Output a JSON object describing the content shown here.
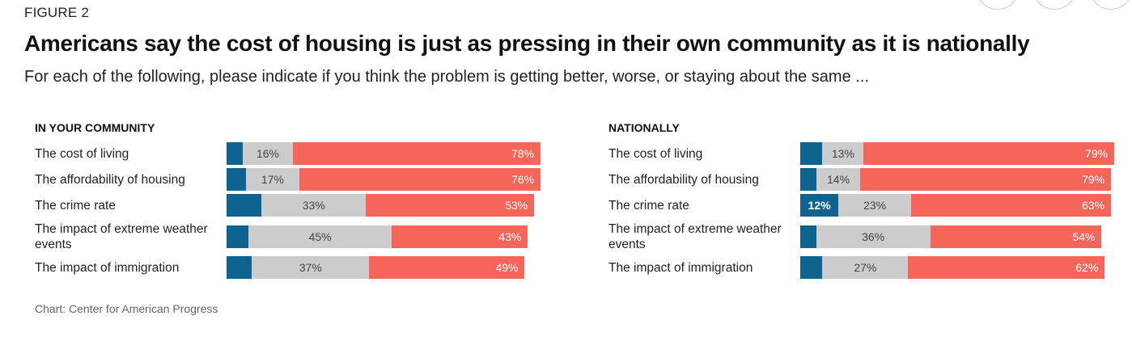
{
  "figure_label": "FIGURE 2",
  "title": "Americans say the cost of housing is just as pressing in their own community as it is nationally",
  "subtitle": "For each of the following, please indicate if you think the problem is getting better, worse, or staying about the same ...",
  "source": "Chart: Center for American Progress",
  "colors": {
    "better": "#0f6391",
    "same": "#cccccc",
    "worse": "#f6655a"
  },
  "chart_data": [
    {
      "type": "bar",
      "stacked": true,
      "orientation": "horizontal",
      "title": "IN YOUR COMMUNITY",
      "categories": [
        "The cost of living",
        "The affordability of housing",
        "The crime rate",
        "The impact of extreme weather events",
        "The impact of immigration"
      ],
      "series": [
        {
          "values": [
            5,
            6,
            11,
            7,
            8
          ],
          "labels": [
            "",
            "",
            "",
            "",
            ""
          ]
        },
        {
          "values": [
            16,
            17,
            33,
            45,
            37
          ],
          "labels": [
            "16%",
            "17%",
            "33%",
            "45%",
            "37%"
          ]
        },
        {
          "values": [
            78,
            76,
            53,
            43,
            49
          ],
          "labels": [
            "78%",
            "76%",
            "53%",
            "43%",
            "49%"
          ]
        }
      ]
    },
    {
      "type": "bar",
      "stacked": true,
      "orientation": "horizontal",
      "title": "NATIONALLY",
      "categories": [
        "The cost of living",
        "The affordability of housing",
        "The crime rate",
        "The impact of extreme weather events",
        "The impact of immigration"
      ],
      "series": [
        {
          "values": [
            7,
            5,
            12,
            5,
            7
          ],
          "labels": [
            "",
            "",
            "12%",
            "",
            ""
          ]
        },
        {
          "values": [
            13,
            14,
            23,
            36,
            27
          ],
          "labels": [
            "13%",
            "14%",
            "23%",
            "36%",
            "27%"
          ]
        },
        {
          "values": [
            79,
            79,
            63,
            54,
            62
          ],
          "labels": [
            "79%",
            "79%",
            "63%",
            "54%",
            "62%"
          ]
        }
      ]
    }
  ]
}
